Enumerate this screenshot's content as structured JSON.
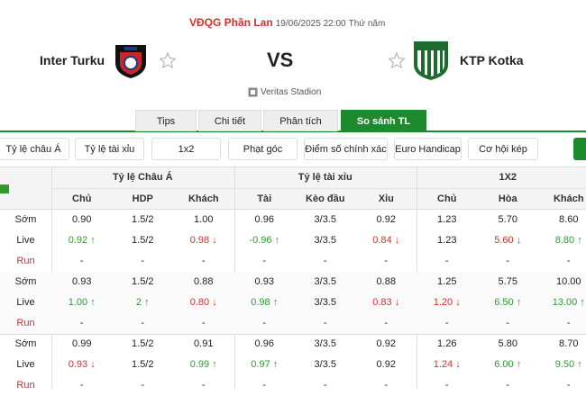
{
  "header": {
    "league": "VĐQG Phần Lan",
    "datetime": "19/06/2025 22:00",
    "weekday": "Thứ năm",
    "home": "Inter Turku",
    "vs": "VS",
    "away": "KTP Kotka",
    "venue": "Veritas Stadion"
  },
  "tabs": {
    "items": [
      "Tips",
      "Chi tiết",
      "Phân tích",
      "So sánh TL"
    ],
    "active": 3
  },
  "filters": [
    "Tỷ lệ châu Á",
    "Tỷ lệ tài xỉu",
    "1x2",
    "Phạt góc",
    "Điểm số chính xác",
    "Euro Handicap",
    "Cơ hội kép"
  ],
  "table": {
    "groups": [
      "Tỷ lệ Châu Á",
      "Tỷ lệ tài xỉu",
      "1X2"
    ],
    "columns": [
      "Chủ",
      "HDP",
      "Khách",
      "Tài",
      "Kèo đầu",
      "Xỉu",
      "Chủ",
      "Hòa",
      "Khách"
    ],
    "rows": [
      {
        "label": "Sớm",
        "cells": [
          "0.90",
          "1.5/2",
          "1.00",
          "0.96",
          "3/3.5",
          "0.92",
          "1.23",
          "5.70",
          "8.60"
        ],
        "trends": [
          null,
          null,
          null,
          null,
          null,
          null,
          null,
          null,
          null
        ]
      },
      {
        "label": "Live",
        "cells": [
          "0.92",
          "1.5/2",
          "0.98",
          "-0.96",
          "3/3.5",
          "0.84",
          "1.23",
          "5.60",
          "8.80"
        ],
        "trends": [
          "up",
          null,
          "down",
          "up",
          null,
          "down",
          null,
          "down",
          "up"
        ]
      },
      {
        "label": "Run",
        "cells": [
          "-",
          "-",
          "-",
          "-",
          "-",
          "-",
          "-",
          "-",
          "-"
        ],
        "trends": [
          null,
          null,
          null,
          null,
          null,
          null,
          null,
          null,
          null
        ]
      },
      {
        "label": "Sớm",
        "cells": [
          "0.93",
          "1.5/2",
          "0.88",
          "0.93",
          "3/3.5",
          "0.88",
          "1.25",
          "5.75",
          "10.00"
        ],
        "trends": [
          null,
          null,
          null,
          null,
          null,
          null,
          null,
          null,
          null
        ]
      },
      {
        "label": "Live",
        "cells": [
          "1.00",
          "2",
          "0.80",
          "0.98",
          "3/3.5",
          "0.83",
          "1.20",
          "6.50",
          "13.00"
        ],
        "trends": [
          "up",
          "up",
          "down",
          "up",
          null,
          "down",
          "down",
          "up",
          "up"
        ]
      },
      {
        "label": "Run",
        "cells": [
          "-",
          "-",
          "-",
          "-",
          "-",
          "-",
          "-",
          "-",
          "-"
        ],
        "trends": [
          null,
          null,
          null,
          null,
          null,
          null,
          null,
          null,
          null
        ]
      },
      {
        "label": "Sớm",
        "cells": [
          "0.99",
          "1.5/2",
          "0.91",
          "0.96",
          "3/3.5",
          "0.92",
          "1.26",
          "5.80",
          "8.70"
        ],
        "trends": [
          null,
          null,
          null,
          null,
          null,
          null,
          null,
          null,
          null
        ]
      },
      {
        "label": "Live",
        "cells": [
          "0.93",
          "1.5/2",
          "0.99",
          "0.97",
          "3/3.5",
          "0.92",
          "1.24",
          "6.00",
          "9.50"
        ],
        "trends": [
          "down",
          null,
          "up",
          "up",
          null,
          null,
          "down",
          "up",
          "up"
        ]
      },
      {
        "label": "Run",
        "cells": [
          "-",
          "-",
          "-",
          "-",
          "-",
          "-",
          "-",
          "-",
          "-"
        ],
        "trends": [
          null,
          null,
          null,
          null,
          null,
          null,
          null,
          null,
          null
        ]
      }
    ]
  }
}
